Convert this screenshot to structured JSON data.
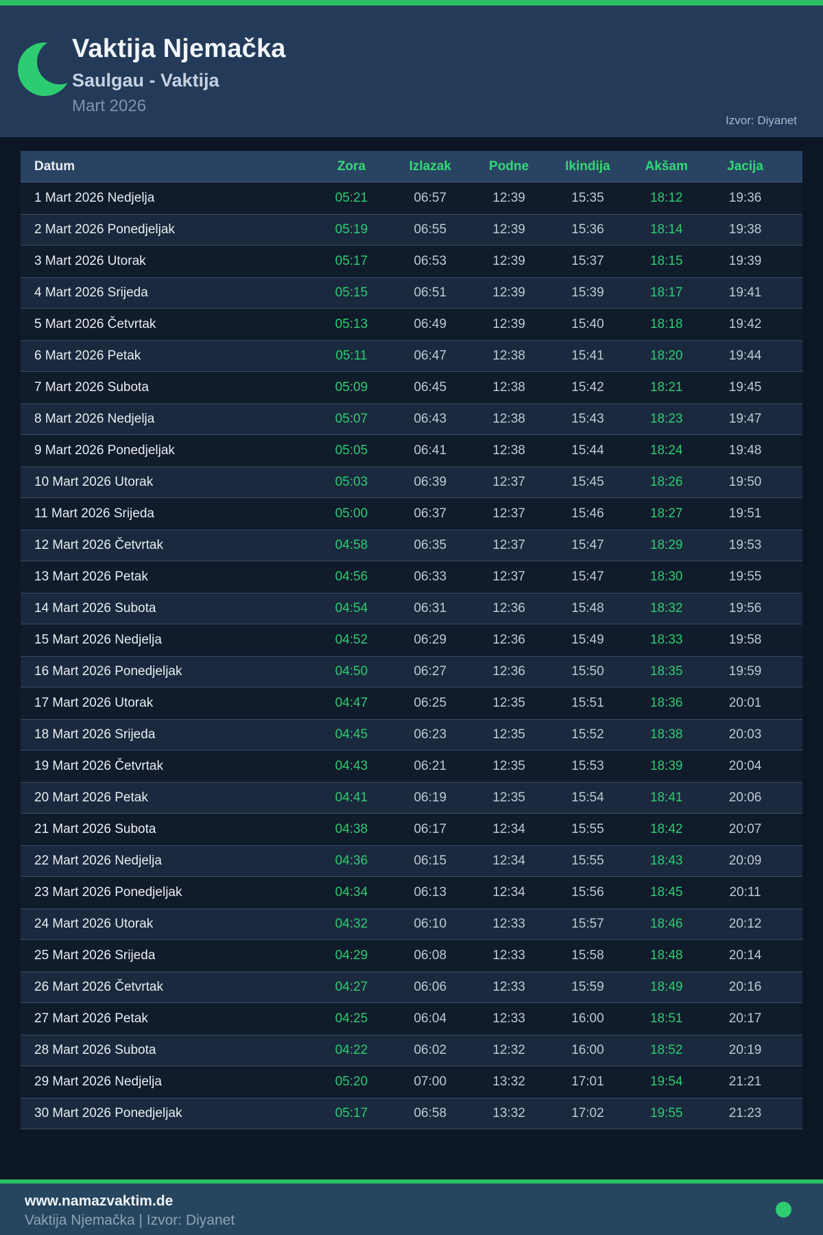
{
  "header": {
    "title": "Vaktija Njemačka",
    "subtitle": "Saulgau - Vaktija",
    "month": "Mart 2026",
    "source": "Izvor: Diyanet",
    "moon_icon": "crescent-moon"
  },
  "colors": {
    "accent_green": "#2ecc71",
    "stripe_green": "#2abf63",
    "header_bg": "#233a59",
    "table_header_bg": "#294363",
    "page_bg": "#0d1624",
    "row_alt_bg": "#1a293d",
    "footer_bg": "#26455f"
  },
  "table": {
    "columns": [
      "Datum",
      "Zora",
      "Izlazak",
      "Podne",
      "Ikindija",
      "Akšam",
      "Jacija"
    ],
    "green_columns": [
      "Zora",
      "Akšam"
    ],
    "rows": [
      {
        "date": "1 Mart 2026 Nedjelja",
        "times": [
          "05:21",
          "06:57",
          "12:39",
          "15:35",
          "18:12",
          "19:36"
        ]
      },
      {
        "date": "2 Mart 2026 Ponedjeljak",
        "times": [
          "05:19",
          "06:55",
          "12:39",
          "15:36",
          "18:14",
          "19:38"
        ]
      },
      {
        "date": "3 Mart 2026 Utorak",
        "times": [
          "05:17",
          "06:53",
          "12:39",
          "15:37",
          "18:15",
          "19:39"
        ]
      },
      {
        "date": "4 Mart 2026 Srijeda",
        "times": [
          "05:15",
          "06:51",
          "12:39",
          "15:39",
          "18:17",
          "19:41"
        ]
      },
      {
        "date": "5 Mart 2026 Četvrtak",
        "times": [
          "05:13",
          "06:49",
          "12:39",
          "15:40",
          "18:18",
          "19:42"
        ]
      },
      {
        "date": "6 Mart 2026 Petak",
        "times": [
          "05:11",
          "06:47",
          "12:38",
          "15:41",
          "18:20",
          "19:44"
        ]
      },
      {
        "date": "7 Mart 2026 Subota",
        "times": [
          "05:09",
          "06:45",
          "12:38",
          "15:42",
          "18:21",
          "19:45"
        ]
      },
      {
        "date": "8 Mart 2026 Nedjelja",
        "times": [
          "05:07",
          "06:43",
          "12:38",
          "15:43",
          "18:23",
          "19:47"
        ]
      },
      {
        "date": "9 Mart 2026 Ponedjeljak",
        "times": [
          "05:05",
          "06:41",
          "12:38",
          "15:44",
          "18:24",
          "19:48"
        ]
      },
      {
        "date": "10 Mart 2026 Utorak",
        "times": [
          "05:03",
          "06:39",
          "12:37",
          "15:45",
          "18:26",
          "19:50"
        ]
      },
      {
        "date": "11 Mart 2026 Srijeda",
        "times": [
          "05:00",
          "06:37",
          "12:37",
          "15:46",
          "18:27",
          "19:51"
        ]
      },
      {
        "date": "12 Mart 2026 Četvrtak",
        "times": [
          "04:58",
          "06:35",
          "12:37",
          "15:47",
          "18:29",
          "19:53"
        ]
      },
      {
        "date": "13 Mart 2026 Petak",
        "times": [
          "04:56",
          "06:33",
          "12:37",
          "15:47",
          "18:30",
          "19:55"
        ]
      },
      {
        "date": "14 Mart 2026 Subota",
        "times": [
          "04:54",
          "06:31",
          "12:36",
          "15:48",
          "18:32",
          "19:56"
        ]
      },
      {
        "date": "15 Mart 2026 Nedjelja",
        "times": [
          "04:52",
          "06:29",
          "12:36",
          "15:49",
          "18:33",
          "19:58"
        ]
      },
      {
        "date": "16 Mart 2026 Ponedjeljak",
        "times": [
          "04:50",
          "06:27",
          "12:36",
          "15:50",
          "18:35",
          "19:59"
        ]
      },
      {
        "date": "17 Mart 2026 Utorak",
        "times": [
          "04:47",
          "06:25",
          "12:35",
          "15:51",
          "18:36",
          "20:01"
        ]
      },
      {
        "date": "18 Mart 2026 Srijeda",
        "times": [
          "04:45",
          "06:23",
          "12:35",
          "15:52",
          "18:38",
          "20:03"
        ]
      },
      {
        "date": "19 Mart 2026 Četvrtak",
        "times": [
          "04:43",
          "06:21",
          "12:35",
          "15:53",
          "18:39",
          "20:04"
        ]
      },
      {
        "date": "20 Mart 2026 Petak",
        "times": [
          "04:41",
          "06:19",
          "12:35",
          "15:54",
          "18:41",
          "20:06"
        ]
      },
      {
        "date": "21 Mart 2026 Subota",
        "times": [
          "04:38",
          "06:17",
          "12:34",
          "15:55",
          "18:42",
          "20:07"
        ]
      },
      {
        "date": "22 Mart 2026 Nedjelja",
        "times": [
          "04:36",
          "06:15",
          "12:34",
          "15:55",
          "18:43",
          "20:09"
        ]
      },
      {
        "date": "23 Mart 2026 Ponedjeljak",
        "times": [
          "04:34",
          "06:13",
          "12:34",
          "15:56",
          "18:45",
          "20:11"
        ]
      },
      {
        "date": "24 Mart 2026 Utorak",
        "times": [
          "04:32",
          "06:10",
          "12:33",
          "15:57",
          "18:46",
          "20:12"
        ]
      },
      {
        "date": "25 Mart 2026 Srijeda",
        "times": [
          "04:29",
          "06:08",
          "12:33",
          "15:58",
          "18:48",
          "20:14"
        ]
      },
      {
        "date": "26 Mart 2026 Četvrtak",
        "times": [
          "04:27",
          "06:06",
          "12:33",
          "15:59",
          "18:49",
          "20:16"
        ]
      },
      {
        "date": "27 Mart 2026 Petak",
        "times": [
          "04:25",
          "06:04",
          "12:33",
          "16:00",
          "18:51",
          "20:17"
        ]
      },
      {
        "date": "28 Mart 2026 Subota",
        "times": [
          "04:22",
          "06:02",
          "12:32",
          "16:00",
          "18:52",
          "20:19"
        ]
      },
      {
        "date": "29 Mart 2026 Nedjelja",
        "times": [
          "05:20",
          "07:00",
          "13:32",
          "17:01",
          "19:54",
          "21:21"
        ]
      },
      {
        "date": "30 Mart 2026 Ponedjeljak",
        "times": [
          "05:17",
          "06:58",
          "13:32",
          "17:02",
          "19:55",
          "21:23"
        ]
      }
    ]
  },
  "footer": {
    "website": "www.namazvaktim.de",
    "tagline": "Vaktija Njemačka | Izvor: Diyanet",
    "dot_icon": "green-dot"
  }
}
